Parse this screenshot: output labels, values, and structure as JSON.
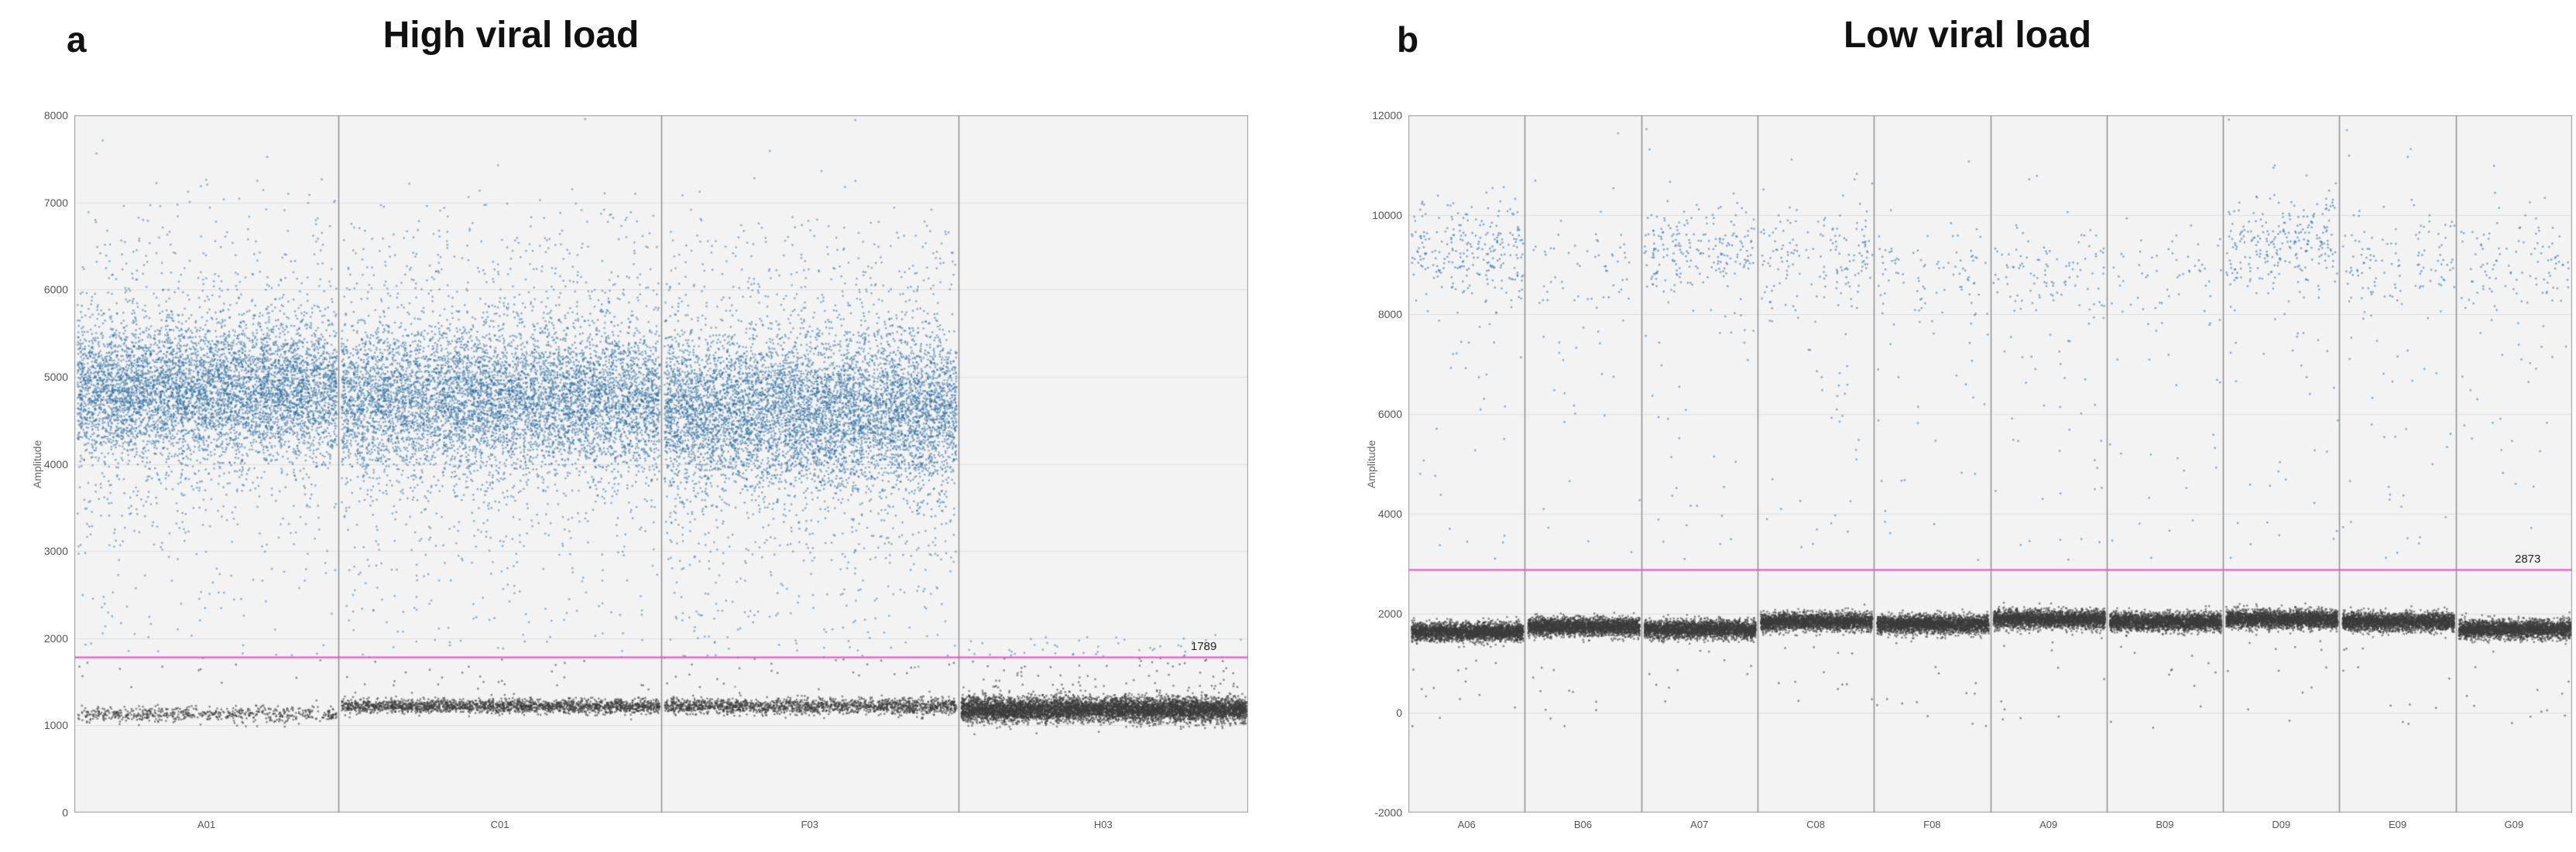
{
  "chart_data": {
    "type": "scatter",
    "description": "Droplet digital PCR 1-D droplet amplitude plots, positive (blue) and negative (gray) droplet clusters per well with pink threshold line",
    "panels": [
      {
        "letter": "a",
        "title": "High viral load",
        "ylabel": "Amplitude",
        "ylim": [
          0,
          8000
        ],
        "yticks": [
          0,
          1000,
          2000,
          3000,
          4000,
          5000,
          6000,
          7000,
          8000
        ],
        "threshold": 1789,
        "threshold_label": "1789",
        "threshold_color": "#e64fd0",
        "plot_bg": "#f3f3f3",
        "point_colors": {
          "positive": "rgba(40,105,160,0.5)",
          "negative": "rgba(60,60,60,0.6)"
        },
        "wells": [
          {
            "label": "A01",
            "width": 0.225,
            "positive": {
              "mean": 4850,
              "sd": 380,
              "count": 6000
            },
            "negative": {
              "mean": 1140,
              "sd": 45,
              "count": 600
            },
            "rain": [
              {
                "min": 1450,
                "max": 7300,
                "count": 240
              }
            ]
          },
          {
            "label": "C01",
            "width": 0.275,
            "positive": {
              "mean": 4750,
              "sd": 400,
              "count": 6800
            },
            "negative": {
              "mean": 1230,
              "sd": 40,
              "count": 2000
            },
            "rain": [
              {
                "min": 1400,
                "max": 7000,
                "count": 380
              }
            ]
          },
          {
            "label": "F03",
            "width": 0.253,
            "positive": {
              "mean": 4600,
              "sd": 430,
              "count": 6800
            },
            "negative": {
              "mean": 1230,
              "sd": 45,
              "count": 1700
            },
            "rain": [
              {
                "min": 1400,
                "max": 6800,
                "count": 420
              }
            ]
          },
          {
            "label": "H03",
            "width": 0.247,
            "positive": {
              "mean": 0,
              "sd": 0,
              "count": 0
            },
            "negative": {
              "mean": 1190,
              "sd": 70,
              "count": 6500
            },
            "rain": [
              {
                "min": 1350,
                "max": 2050,
                "count": 130
              }
            ]
          }
        ]
      },
      {
        "letter": "b",
        "title": "Low viral load",
        "ylabel": "Amplitude",
        "ylim": [
          -2000,
          12000
        ],
        "yticks": [
          -2000,
          0,
          2000,
          4000,
          6000,
          8000,
          10000,
          12000
        ],
        "threshold": 2873,
        "threshold_label": "2873",
        "threshold_color": "#e64fd0",
        "plot_bg": "#f3f3f3",
        "point_colors": {
          "positive": "rgba(40,105,160,0.55)",
          "negative": "rgba(60,60,60,0.6)"
        },
        "wells": [
          {
            "label": "A06",
            "width": 0.1,
            "positive": {
              "mean": 9300,
              "sd": 450,
              "count": 260
            },
            "negative": {
              "mean": 1650,
              "sd": 90,
              "count": 2600
            },
            "rain": [
              {
                "min": 3100,
                "max": 8300,
                "count": 26
              },
              {
                "min": -300,
                "max": 1450,
                "count": 14
              }
            ]
          },
          {
            "label": "B06",
            "width": 0.1,
            "positive": {
              "mean": 9000,
              "sd": 500,
              "count": 60
            },
            "negative": {
              "mean": 1750,
              "sd": 90,
              "count": 2600
            },
            "rain": [
              {
                "min": 3100,
                "max": 8300,
                "count": 20
              },
              {
                "min": -300,
                "max": 1500,
                "count": 12
              }
            ]
          },
          {
            "label": "A07",
            "width": 0.1,
            "positive": {
              "mean": 9300,
              "sd": 400,
              "count": 220
            },
            "negative": {
              "mean": 1700,
              "sd": 90,
              "count": 2600
            },
            "rain": [
              {
                "min": 3100,
                "max": 8300,
                "count": 26
              },
              {
                "min": -300,
                "max": 1500,
                "count": 12
              }
            ]
          },
          {
            "label": "C08",
            "width": 0.1,
            "positive": {
              "mean": 9200,
              "sd": 450,
              "count": 160
            },
            "negative": {
              "mean": 1850,
              "sd": 90,
              "count": 2600
            },
            "rain": [
              {
                "min": 3100,
                "max": 8300,
                "count": 30
              },
              {
                "min": -300,
                "max": 1550,
                "count": 12
              }
            ]
          },
          {
            "label": "F08",
            "width": 0.1,
            "positive": {
              "mean": 8900,
              "sd": 450,
              "count": 90
            },
            "negative": {
              "mean": 1800,
              "sd": 90,
              "count": 2600
            },
            "rain": [
              {
                "min": 3000,
                "max": 8200,
                "count": 24
              },
              {
                "min": -300,
                "max": 1500,
                "count": 12
              }
            ]
          },
          {
            "label": "A09",
            "width": 0.1,
            "positive": {
              "mean": 8800,
              "sd": 500,
              "count": 110
            },
            "negative": {
              "mean": 1900,
              "sd": 90,
              "count": 2600
            },
            "rain": [
              {
                "min": 3000,
                "max": 8100,
                "count": 30
              },
              {
                "min": -300,
                "max": 1600,
                "count": 12
              }
            ]
          },
          {
            "label": "B09",
            "width": 0.1,
            "positive": {
              "mean": 8700,
              "sd": 450,
              "count": 60
            },
            "negative": {
              "mean": 1850,
              "sd": 90,
              "count": 2600
            },
            "rain": [
              {
                "min": 3000,
                "max": 8100,
                "count": 20
              },
              {
                "min": -300,
                "max": 1550,
                "count": 12
              }
            ]
          },
          {
            "label": "D09",
            "width": 0.1,
            "positive": {
              "mean": 9500,
              "sd": 400,
              "count": 260
            },
            "negative": {
              "mean": 1900,
              "sd": 90,
              "count": 2600
            },
            "rain": [
              {
                "min": 3100,
                "max": 8500,
                "count": 30
              },
              {
                "min": -300,
                "max": 1600,
                "count": 12
              }
            ]
          },
          {
            "label": "E09",
            "width": 0.1,
            "positive": {
              "mean": 9100,
              "sd": 500,
              "count": 130
            },
            "negative": {
              "mean": 1850,
              "sd": 90,
              "count": 2600
            },
            "rain": [
              {
                "min": 3000,
                "max": 8300,
                "count": 26
              },
              {
                "min": -300,
                "max": 1550,
                "count": 12
              }
            ]
          },
          {
            "label": "G09",
            "width": 0.1,
            "positive": {
              "mean": 9000,
              "sd": 450,
              "count": 110
            },
            "negative": {
              "mean": 1700,
              "sd": 90,
              "count": 2600
            },
            "rain": [
              {
                "min": 3000,
                "max": 8300,
                "count": 22
              },
              {
                "min": -300,
                "max": 1450,
                "count": 12
              }
            ]
          }
        ]
      }
    ]
  }
}
